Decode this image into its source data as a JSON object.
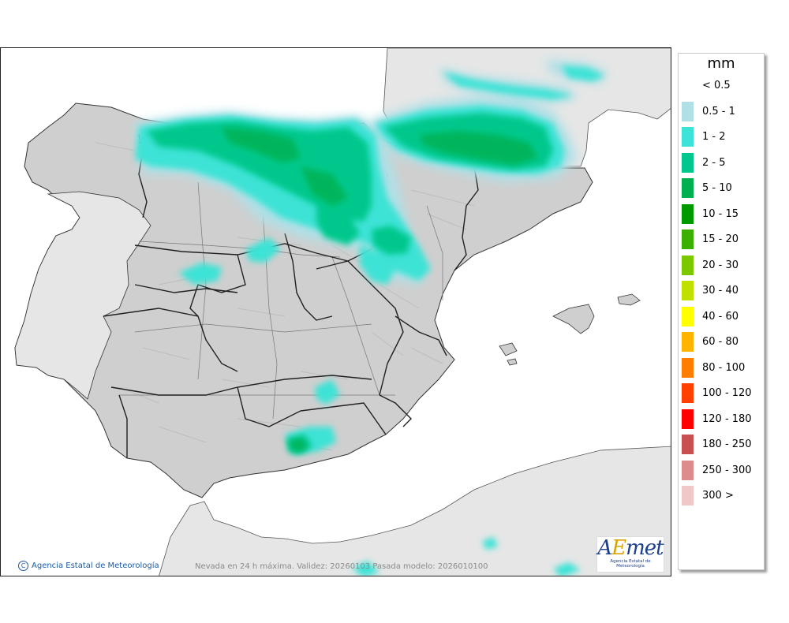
{
  "legend": {
    "unit": "mm",
    "entries": [
      {
        "label": "< 0.5",
        "color": "#ffffff"
      },
      {
        "label": "0.5 - 1",
        "color": "#b0e0e6"
      },
      {
        "label": "1 - 2",
        "color": "#3de3d6"
      },
      {
        "label": "2 - 5",
        "color": "#00c88c"
      },
      {
        "label": "5 - 10",
        "color": "#00b050"
      },
      {
        "label": "10 - 15",
        "color": "#009900"
      },
      {
        "label": "15 - 20",
        "color": "#3cb000"
      },
      {
        "label": "20 - 30",
        "color": "#7cc800"
      },
      {
        "label": "30 - 40",
        "color": "#c0e000"
      },
      {
        "label": "40 - 60",
        "color": "#ffff00"
      },
      {
        "label": "60 - 80",
        "color": "#ffb400"
      },
      {
        "label": "80 - 100",
        "color": "#ff7d00"
      },
      {
        "label": "100 - 120",
        "color": "#ff4000"
      },
      {
        "label": "120 - 180",
        "color": "#ff0000"
      },
      {
        "label": "180 - 250",
        "color": "#c85050"
      },
      {
        "label": "250 - 300",
        "color": "#dc8c8c"
      },
      {
        "label": "300 >",
        "color": "#f0c8c8"
      }
    ]
  },
  "map": {
    "credit": "Agencia Estatal de Meteorología",
    "footer_note": "Nevada en 24 h máxima. Validez: 20260103 Pasada modelo: 2026010100",
    "logo": {
      "mark_a": "A",
      "mark_e": "E",
      "mark_rest": "met",
      "subtitle": "Agencia Estatal de Meteorología"
    }
  },
  "colors": {
    "land": "#cfcfcf",
    "other_land": "#e6e6e6",
    "sea": "#ffffff",
    "border": "#202020"
  }
}
